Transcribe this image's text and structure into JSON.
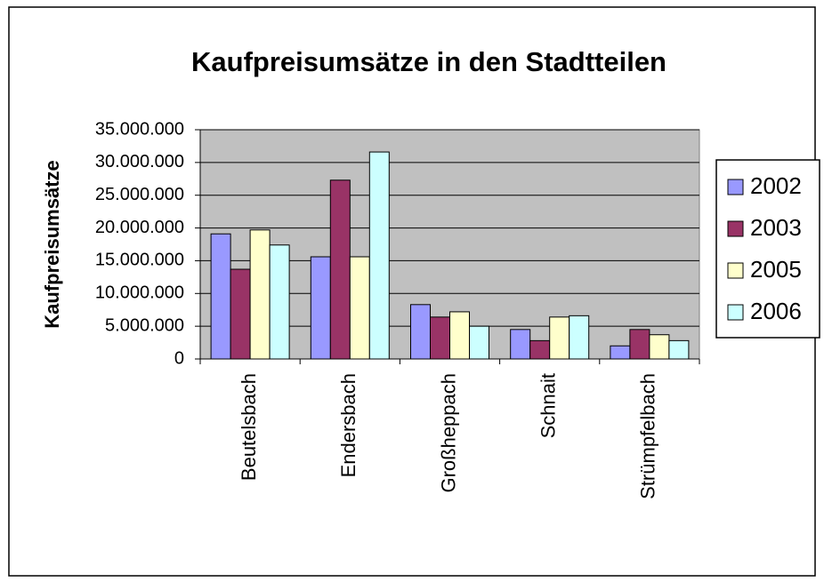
{
  "chart_data": {
    "type": "bar",
    "title": "Kaufpreisumsätze in den Stadtteilen",
    "y_label": "Kaufpreisumsätze",
    "categories": [
      "Beutelsbach",
      "Endersbach",
      "Großheppach",
      "Schnait",
      "Strümpfelbach"
    ],
    "series": [
      {
        "name": "2002",
        "color": "#9999ff",
        "values": [
          19100000,
          15600000,
          8300000,
          4500000,
          2000000
        ]
      },
      {
        "name": "2003",
        "color": "#993366",
        "values": [
          13700000,
          27300000,
          6400000,
          2800000,
          4500000
        ]
      },
      {
        "name": "2005",
        "color": "#ffffcc",
        "values": [
          19700000,
          15600000,
          7200000,
          6400000,
          3700000
        ]
      },
      {
        "name": "2006",
        "color": "#ccffff",
        "values": [
          17400000,
          31600000,
          5000000,
          6600000,
          2800000
        ]
      }
    ],
    "ylim": [
      0,
      35000000
    ],
    "yticks": [
      0,
      {
        "value": 5000000,
        "label": "5.000.000"
      },
      {
        "value": 10000000,
        "label": "10.000.000"
      },
      {
        "value": 15000000,
        "label": "15.000.000"
      },
      {
        "value": 20000000,
        "label": "20.000.000"
      },
      {
        "value": 25000000,
        "label": "25.000.000"
      },
      {
        "value": 30000000,
        "label": "30.000.000"
      },
      {
        "value": 35000000,
        "label": "35.000.000"
      }
    ],
    "grid": true,
    "legend": "right"
  }
}
